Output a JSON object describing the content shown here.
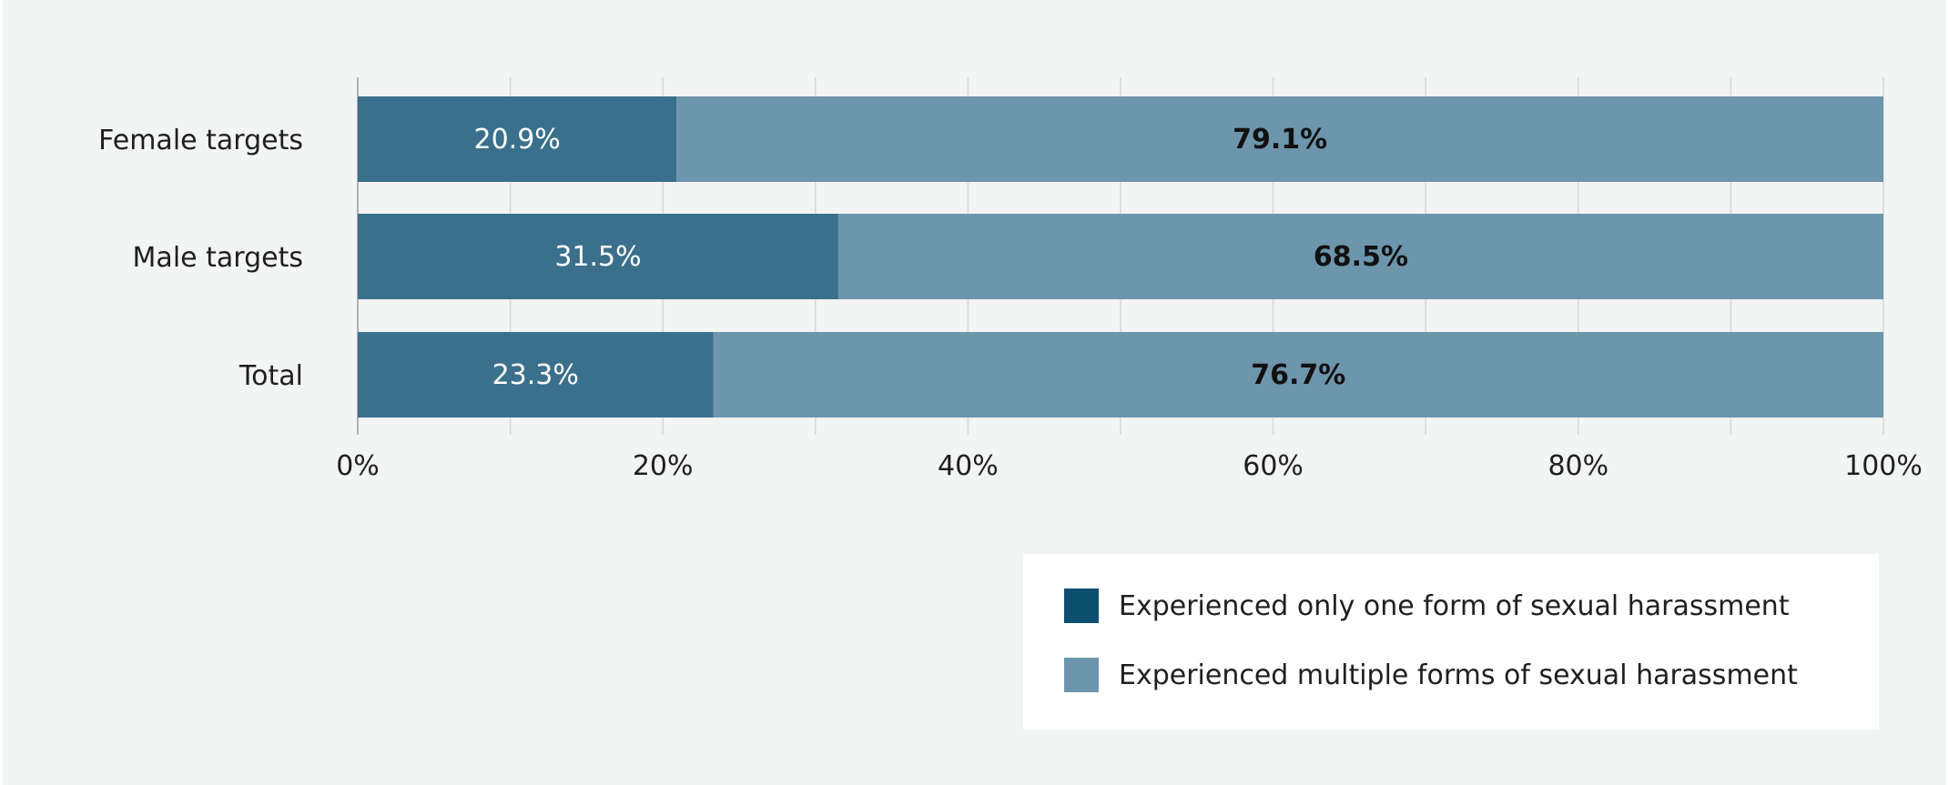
{
  "colors": {
    "series_one": "#3a708c",
    "series_one_swatch": "#0d4f6e",
    "series_multiple": "#6d95ac",
    "grid": "#d6d8d8",
    "axis": "#9a9c9c"
  },
  "chart_data": {
    "type": "bar",
    "orientation": "horizontal",
    "stacked": true,
    "categories": [
      "Female targets",
      "Male targets",
      "Total"
    ],
    "series": [
      {
        "name": "Experienced only one form of sexual harassment",
        "values": [
          20.9,
          31.5,
          23.3
        ],
        "labels": [
          "20.9%",
          "31.5%",
          "23.3%"
        ]
      },
      {
        "name": "Experienced multiple forms of sexual harassment",
        "values": [
          79.1,
          68.5,
          76.7
        ],
        "labels": [
          "79.1%",
          "68.5%",
          "76.7%"
        ]
      }
    ],
    "x_ticks": [
      "0%",
      "20%",
      "40%",
      "60%",
      "80%",
      "100%"
    ],
    "xlim": [
      0,
      100
    ],
    "grid": true,
    "legend_position": "bottom-right",
    "title": "",
    "xlabel": "",
    "ylabel": ""
  }
}
